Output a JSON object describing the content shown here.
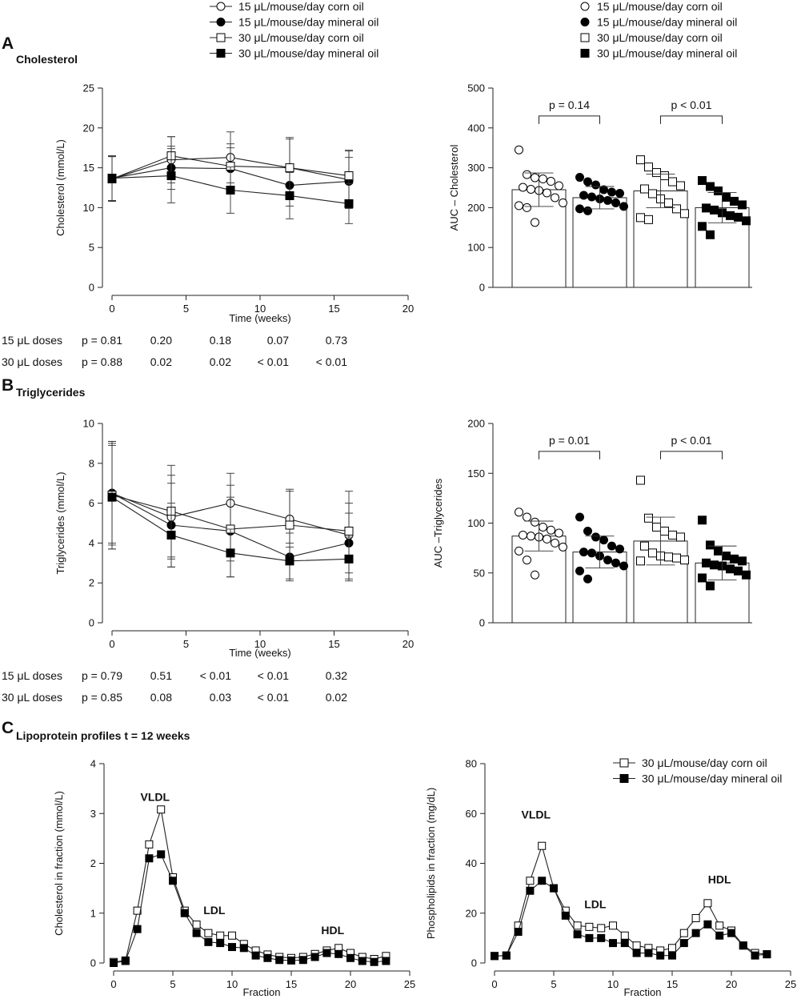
{
  "colors": {
    "ink": "#111111",
    "marker_open": "#ffffff",
    "marker_filled": "#000000"
  },
  "panel_labels": {
    "a": "A",
    "b": "B",
    "c": "C"
  },
  "legend": {
    "entries": [
      {
        "label": "15 μL/mouse/day corn oil",
        "marker": "circle-open"
      },
      {
        "label": "15 μL/mouse/day mineral oil",
        "marker": "circle-filled"
      },
      {
        "label": "30 μL/mouse/day corn oil",
        "marker": "square-open"
      },
      {
        "label": "30 μL/mouse/day mineral oil",
        "marker": "square-filled"
      }
    ],
    "c_entries": [
      {
        "label": "30 μL/mouse/day corn oil",
        "marker": "square-open"
      },
      {
        "label": "30 μL/mouse/day mineral oil",
        "marker": "square-filled"
      }
    ]
  },
  "pvalue_tables": {
    "a": {
      "rows": [
        {
          "label": "15 μL doses",
          "values": [
            "p = 0.81",
            "0.20",
            "0.18",
            "0.07",
            "0.73"
          ]
        },
        {
          "label": "30 μL doses",
          "values": [
            "p = 0.88",
            "0.02",
            "0.02",
            "< 0.01",
            "< 0.01"
          ]
        }
      ]
    },
    "b": {
      "rows": [
        {
          "label": "15 μL doses",
          "values": [
            "p = 0.79",
            "0.51",
            "< 0.01",
            "< 0.01",
            "0.32"
          ]
        },
        {
          "label": "30 μL doses",
          "values": [
            "p = 0.85",
            "0.08",
            "0.03",
            "< 0.01",
            "0.02"
          ]
        }
      ]
    }
  },
  "chart_data": [
    {
      "id": "a-line",
      "type": "line",
      "panel": "A",
      "title": "Cholesterol",
      "xlabel": "Time (weeks)",
      "ylabel": "Cholesterol (mmol/L)",
      "xlim": [
        0,
        20
      ],
      "ylim": [
        0,
        25
      ],
      "xticks": [
        0,
        5,
        10,
        15,
        20
      ],
      "yticks": [
        0,
        5,
        10,
        15,
        20,
        25
      ],
      "x": [
        0,
        4,
        8,
        12,
        16
      ],
      "series": [
        {
          "name": "15 μL/mouse/day corn oil",
          "marker": "circle-open",
          "values": [
            13.6,
            16.0,
            16.3,
            15.0,
            13.5
          ],
          "err": [
            2.8,
            2.9,
            3.2,
            3.8,
            3.6
          ]
        },
        {
          "name": "15 μL/mouse/day mineral oil",
          "marker": "circle-filled",
          "values": [
            13.7,
            15.0,
            14.9,
            12.8,
            13.3
          ],
          "err": [
            2.8,
            2.7,
            2.6,
            2.6,
            3.0
          ]
        },
        {
          "name": "30 μL/mouse/day corn oil",
          "marker": "square-open",
          "values": [
            13.6,
            16.5,
            15.2,
            15.0,
            14.0
          ],
          "err": [
            2.8,
            2.4,
            2.8,
            3.6,
            3.2
          ]
        },
        {
          "name": "30 μL/mouse/day mineral oil",
          "marker": "square-filled",
          "values": [
            13.7,
            14.0,
            12.2,
            11.5,
            10.5
          ],
          "err": [
            2.8,
            3.4,
            2.9,
            2.9,
            2.5
          ]
        }
      ]
    },
    {
      "id": "a-bar",
      "type": "bar",
      "panel": "A",
      "ylabel": "AUC – Cholesterol",
      "ylim": [
        0,
        500
      ],
      "yticks": [
        0,
        100,
        200,
        300,
        400,
        500
      ],
      "series": [
        {
          "name": "15 μL/mouse/day corn oil",
          "marker": "circle-open",
          "mean": 245,
          "err": 42,
          "points": [
            345,
            283,
            275,
            272,
            266,
            255,
            251,
            246,
            243,
            237,
            225,
            212,
            205,
            200,
            163
          ]
        },
        {
          "name": "15 μL/mouse/day mineral oil",
          "marker": "circle-filled",
          "mean": 225,
          "err": 28,
          "points": [
            276,
            265,
            257,
            245,
            239,
            236,
            231,
            227,
            222,
            218,
            212,
            203,
            197,
            192
          ]
        },
        {
          "name": "30 μL/mouse/day corn oil",
          "marker": "square-open",
          "mean": 242,
          "err": 42,
          "points": [
            320,
            302,
            288,
            280,
            265,
            255,
            247,
            235,
            222,
            212,
            197,
            185,
            175,
            170
          ]
        },
        {
          "name": "30 μL/mouse/day mineral oil",
          "marker": "square-filled",
          "mean": 200,
          "err": 38,
          "points": [
            268,
            253,
            242,
            226,
            216,
            207,
            199,
            194,
            187,
            180,
            176,
            167,
            153,
            132
          ]
        }
      ],
      "comparisons": [
        {
          "label": "p = 0.14",
          "from": 0,
          "to": 1,
          "y": 430
        },
        {
          "label": "p < 0.01",
          "from": 2,
          "to": 3,
          "y": 430
        }
      ]
    },
    {
      "id": "b-line",
      "type": "line",
      "panel": "B",
      "title": "Triglycerides",
      "xlabel": "Time (weeks)",
      "ylabel": "Triglycerides (mmol/L)",
      "xlim": [
        0,
        20
      ],
      "ylim": [
        0,
        10
      ],
      "xticks": [
        0,
        5,
        10,
        15,
        20
      ],
      "yticks": [
        0,
        2,
        4,
        6,
        8,
        10
      ],
      "x": [
        0,
        4,
        8,
        12,
        16
      ],
      "series": [
        {
          "name": "15 μL/mouse/day corn oil",
          "marker": "circle-open",
          "values": [
            6.5,
            5.3,
            6.0,
            5.2,
            4.4
          ],
          "err": [
            2.5,
            2.1,
            1.5,
            1.4,
            2.2
          ]
        },
        {
          "name": "15 μL/mouse/day mineral oil",
          "marker": "circle-filled",
          "values": [
            6.5,
            4.9,
            4.6,
            3.3,
            4.0
          ],
          "err": [
            2.6,
            2.1,
            2.3,
            1.2,
            1.5
          ]
        },
        {
          "name": "30 μL/mouse/day corn oil",
          "marker": "square-open",
          "values": [
            6.4,
            5.6,
            4.7,
            4.9,
            4.6
          ],
          "err": [
            2.7,
            2.3,
            1.6,
            1.8,
            1.4
          ]
        },
        {
          "name": "30 μL/mouse/day mineral oil",
          "marker": "square-filled",
          "values": [
            6.3,
            4.4,
            3.5,
            3.1,
            3.2
          ],
          "err": [
            2.6,
            1.6,
            1.2,
            0.9,
            1.1
          ]
        }
      ]
    },
    {
      "id": "b-bar",
      "type": "bar",
      "panel": "B",
      "ylabel": "AUC –Triglycerides",
      "ylim": [
        0,
        200
      ],
      "yticks": [
        0,
        50,
        100,
        150,
        200
      ],
      "series": [
        {
          "name": "15 μL/mouse/day corn oil",
          "marker": "circle-open",
          "mean": 87,
          "err": 15,
          "points": [
            111,
            106,
            101,
            96,
            93,
            90,
            88,
            87,
            86,
            84,
            80,
            76,
            72,
            63,
            48
          ]
        },
        {
          "name": "15 μL/mouse/day mineral oil",
          "marker": "circle-filled",
          "mean": 71,
          "err": 16,
          "points": [
            106,
            92,
            86,
            83,
            77,
            74,
            71,
            70,
            67,
            63,
            60,
            57,
            52,
            44
          ]
        },
        {
          "name": "30 μL/mouse/day corn oil",
          "marker": "square-open",
          "mean": 82,
          "err": 24,
          "points": [
            143,
            105,
            96,
            92,
            88,
            86,
            77,
            70,
            67,
            66,
            65,
            63,
            62
          ]
        },
        {
          "name": "30 μL/mouse/day mineral oil",
          "marker": "square-filled",
          "mean": 60,
          "err": 17,
          "points": [
            103,
            78,
            72,
            67,
            64,
            62,
            60,
            58,
            57,
            54,
            52,
            48,
            45,
            37
          ]
        }
      ],
      "comparisons": [
        {
          "label": "p = 0.01",
          "from": 0,
          "to": 1,
          "y": 172
        },
        {
          "label": "p < 0.01",
          "from": 2,
          "to": 3,
          "y": 172
        }
      ]
    },
    {
      "id": "c-chol",
      "type": "line",
      "panel": "C",
      "title": "Lipoprotein profiles t = 12 weeks",
      "xlabel": "Fraction",
      "ylabel": "Cholesterol in fraction (mmol/L)",
      "xlim": [
        0,
        25
      ],
      "ylim": [
        0,
        4
      ],
      "xticks": [
        0,
        5,
        10,
        15,
        20,
        25
      ],
      "yticks": [
        0,
        1,
        2,
        3,
        4
      ],
      "x": [
        0,
        1,
        2,
        3,
        4,
        5,
        6,
        7,
        8,
        9,
        10,
        11,
        12,
        13,
        14,
        15,
        16,
        17,
        18,
        19,
        20,
        21,
        22,
        23
      ],
      "series": [
        {
          "name": "30 μL/mouse/day corn oil",
          "marker": "square-open",
          "values": [
            0.02,
            0.05,
            1.05,
            2.38,
            3.08,
            1.72,
            1.05,
            0.77,
            0.6,
            0.55,
            0.55,
            0.38,
            0.25,
            0.17,
            0.12,
            0.1,
            0.12,
            0.18,
            0.25,
            0.3,
            0.2,
            0.12,
            0.08,
            0.14
          ],
          "yerr": []
        },
        {
          "name": "30 μL/mouse/day mineral oil",
          "marker": "square-filled",
          "values": [
            0.0,
            0.04,
            0.68,
            2.1,
            2.18,
            1.65,
            1.0,
            0.6,
            0.42,
            0.4,
            0.32,
            0.3,
            0.15,
            0.1,
            0.06,
            0.05,
            0.06,
            0.12,
            0.2,
            0.18,
            0.1,
            0.04,
            0.02,
            0.04
          ],
          "yerr": []
        }
      ],
      "annotations": [
        {
          "text": "VLDL",
          "x": 3.5,
          "y": 3.25
        },
        {
          "text": "LDL",
          "x": 8.5,
          "y": 0.98
        },
        {
          "text": "HDL",
          "x": 18.5,
          "y": 0.58
        }
      ]
    },
    {
      "id": "c-phos",
      "type": "line",
      "panel": "C",
      "xlabel": "Fraction",
      "ylabel": "Phospholipids in fraction (mg/dL)",
      "xlim": [
        0,
        25
      ],
      "ylim": [
        0,
        80
      ],
      "xticks": [
        0,
        5,
        10,
        15,
        20,
        25
      ],
      "yticks": [
        0,
        20,
        40,
        60,
        80
      ],
      "x": [
        0,
        1,
        2,
        3,
        4,
        5,
        6,
        7,
        8,
        9,
        10,
        11,
        12,
        13,
        14,
        15,
        16,
        17,
        18,
        19,
        20,
        21,
        22,
        23
      ],
      "series": [
        {
          "name": "30 μL/mouse/day corn oil",
          "marker": "square-open",
          "values": [
            2.8,
            3.0,
            15.0,
            33.0,
            47.0,
            30.0,
            21.0,
            15.0,
            14.5,
            14.0,
            15.0,
            11.0,
            7.0,
            6.0,
            5.0,
            6.0,
            12.0,
            18.0,
            24.0,
            15.0,
            13.0,
            7.0,
            4.0,
            3.5
          ]
        },
        {
          "name": "30 μL/mouse/day mineral oil",
          "marker": "square-filled",
          "values": [
            2.8,
            3.0,
            12.5,
            29.0,
            33.0,
            30.0,
            19.0,
            11.5,
            10.0,
            10.0,
            8.0,
            8.0,
            4.0,
            4.0,
            3.0,
            3.0,
            8.0,
            12.0,
            15.5,
            11.0,
            12.0,
            7.0,
            3.0,
            3.5
          ]
        }
      ],
      "annotations": [
        {
          "text": "VLDL",
          "x": 3.5,
          "y": 58
        },
        {
          "text": "LDL",
          "x": 8.5,
          "y": 22
        },
        {
          "text": "HDL",
          "x": 19,
          "y": 32
        }
      ]
    }
  ]
}
